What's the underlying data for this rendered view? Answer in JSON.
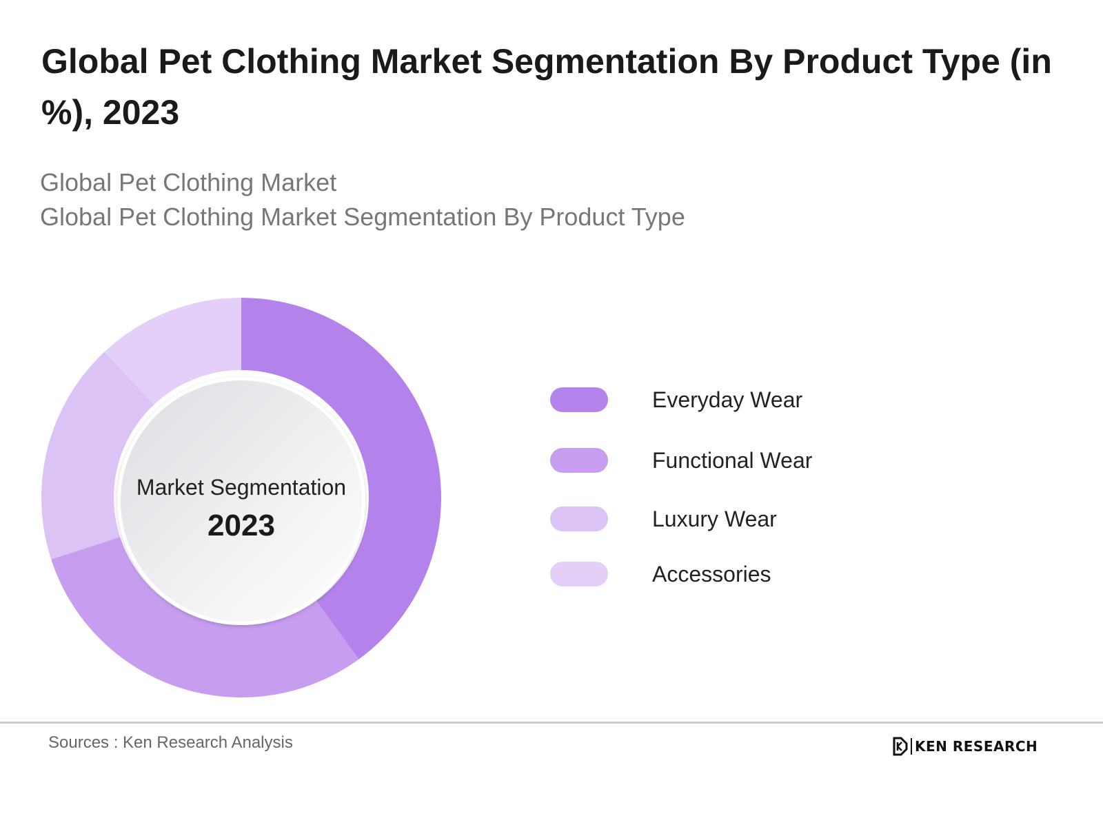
{
  "header": {
    "title": "Global Pet Clothing Market Segmentation By Product Type (in %), 2023",
    "subtitle_line1": "Global Pet Clothing Market",
    "subtitle_line2": "Global Pet Clothing Market Segmentation By Product Type"
  },
  "center_label": {
    "line1": "Market Segmentation",
    "line2": "2023"
  },
  "footer": {
    "source": "Sources : Ken Research Analysis",
    "brand": "KEN RESEARCH",
    "brand_icon": "ken-research-logo-icon"
  },
  "chart_data": {
    "type": "pie",
    "variant": "donut",
    "categories": [
      "Everyday Wear",
      "Functional Wear",
      "Luxury Wear",
      "Accessories"
    ],
    "values": [
      40,
      30,
      18,
      12
    ],
    "colors": [
      "#b382eb",
      "#c79df0",
      "#dcc3f5",
      "#e4cff8"
    ],
    "legend_position": "right",
    "data_labels": false
  }
}
